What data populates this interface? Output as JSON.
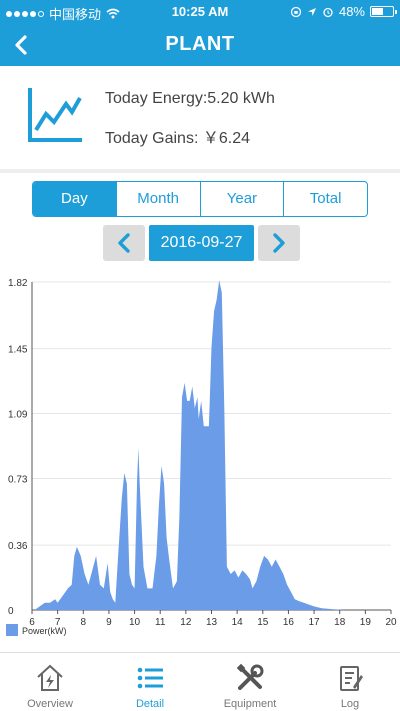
{
  "status_bar": {
    "carrier": "中国移动",
    "time": "10:25 AM",
    "battery": "48%"
  },
  "nav": {
    "title": "PLANT",
    "back_icon": "chevron-left-icon"
  },
  "summary": {
    "energy_label": "Today Energy:",
    "energy_value": "5.20 kWh",
    "gains_label": "Today Gains:",
    "gains_value": "￥6.24",
    "icon": "line-chart-icon"
  },
  "segments": [
    "Day",
    "Month",
    "Year",
    "Total"
  ],
  "active_segment": 0,
  "date_picker": {
    "date": "2016-09-27",
    "prev_icon": "chevron-left-icon",
    "next_icon": "chevron-right-icon"
  },
  "tabs": [
    {
      "label": "Overview",
      "icon": "house-bolt-icon"
    },
    {
      "label": "Detail",
      "icon": "list-icon"
    },
    {
      "label": "Equipment",
      "icon": "tools-icon"
    },
    {
      "label": "Log",
      "icon": "document-edit-icon"
    }
  ],
  "active_tab": 1,
  "colors": {
    "accent": "#1e9ed9",
    "area": "#6a9ce8"
  },
  "chart_data": {
    "type": "area",
    "x_ticks": [
      "6",
      "7",
      "8",
      "9",
      "10",
      "11",
      "12",
      "13",
      "14",
      "15",
      "16",
      "17",
      "18",
      "19",
      "20"
    ],
    "y_ticks": [
      "0",
      "0.36",
      "0.73",
      "1.09",
      "1.45",
      "1.82"
    ],
    "xlim": [
      6,
      20
    ],
    "ylim": [
      0,
      1.82
    ],
    "grid": true,
    "legend": "bottom-left",
    "series": [
      {
        "name": "Power(kW)",
        "points": [
          [
            6.1,
            0
          ],
          [
            6.3,
            0.02
          ],
          [
            6.5,
            0.04
          ],
          [
            6.7,
            0.04
          ],
          [
            6.9,
            0.06
          ],
          [
            7.0,
            0.04
          ],
          [
            7.2,
            0.08
          ],
          [
            7.4,
            0.12
          ],
          [
            7.55,
            0.14
          ],
          [
            7.65,
            0.3
          ],
          [
            7.75,
            0.35
          ],
          [
            7.9,
            0.3
          ],
          [
            8.05,
            0.2
          ],
          [
            8.2,
            0.14
          ],
          [
            8.35,
            0.22
          ],
          [
            8.5,
            0.3
          ],
          [
            8.65,
            0.14
          ],
          [
            8.8,
            0.12
          ],
          [
            8.95,
            0.26
          ],
          [
            9.05,
            0.1
          ],
          [
            9.15,
            0.06
          ],
          [
            9.25,
            0.04
          ],
          [
            9.35,
            0.28
          ],
          [
            9.5,
            0.62
          ],
          [
            9.6,
            0.76
          ],
          [
            9.7,
            0.7
          ],
          [
            9.8,
            0.2
          ],
          [
            9.9,
            0.14
          ],
          [
            10.0,
            0.12
          ],
          [
            10.1,
            0.72
          ],
          [
            10.15,
            0.9
          ],
          [
            10.2,
            0.7
          ],
          [
            10.35,
            0.24
          ],
          [
            10.5,
            0.12
          ],
          [
            10.7,
            0.12
          ],
          [
            10.85,
            0.3
          ],
          [
            10.95,
            0.58
          ],
          [
            11.05,
            0.8
          ],
          [
            11.15,
            0.7
          ],
          [
            11.25,
            0.4
          ],
          [
            11.35,
            0.28
          ],
          [
            11.5,
            0.12
          ],
          [
            11.65,
            0.16
          ],
          [
            11.75,
            0.52
          ],
          [
            11.85,
            1.18
          ],
          [
            11.95,
            1.26
          ],
          [
            12.05,
            1.16
          ],
          [
            12.15,
            1.16
          ],
          [
            12.25,
            1.24
          ],
          [
            12.35,
            1.12
          ],
          [
            12.45,
            1.18
          ],
          [
            12.5,
            1.06
          ],
          [
            12.6,
            1.16
          ],
          [
            12.7,
            1.02
          ],
          [
            12.8,
            1.02
          ],
          [
            12.9,
            1.02
          ],
          [
            13.0,
            1.46
          ],
          [
            13.1,
            1.66
          ],
          [
            13.2,
            1.72
          ],
          [
            13.3,
            1.83
          ],
          [
            13.4,
            1.76
          ],
          [
            13.5,
            1.12
          ],
          [
            13.6,
            0.24
          ],
          [
            13.75,
            0.2
          ],
          [
            13.9,
            0.22
          ],
          [
            14.05,
            0.18
          ],
          [
            14.2,
            0.22
          ],
          [
            14.35,
            0.2
          ],
          [
            14.5,
            0.17
          ],
          [
            14.6,
            0.12
          ],
          [
            14.75,
            0.16
          ],
          [
            14.9,
            0.24
          ],
          [
            15.05,
            0.3
          ],
          [
            15.2,
            0.28
          ],
          [
            15.35,
            0.24
          ],
          [
            15.5,
            0.28
          ],
          [
            15.65,
            0.24
          ],
          [
            15.8,
            0.2
          ],
          [
            15.95,
            0.14
          ],
          [
            16.1,
            0.1
          ],
          [
            16.25,
            0.06
          ],
          [
            16.4,
            0.05
          ],
          [
            16.6,
            0.04
          ],
          [
            16.8,
            0.03
          ],
          [
            17.0,
            0.02
          ],
          [
            17.3,
            0.01
          ],
          [
            17.7,
            0.005
          ],
          [
            18.2,
            0
          ]
        ]
      }
    ]
  }
}
